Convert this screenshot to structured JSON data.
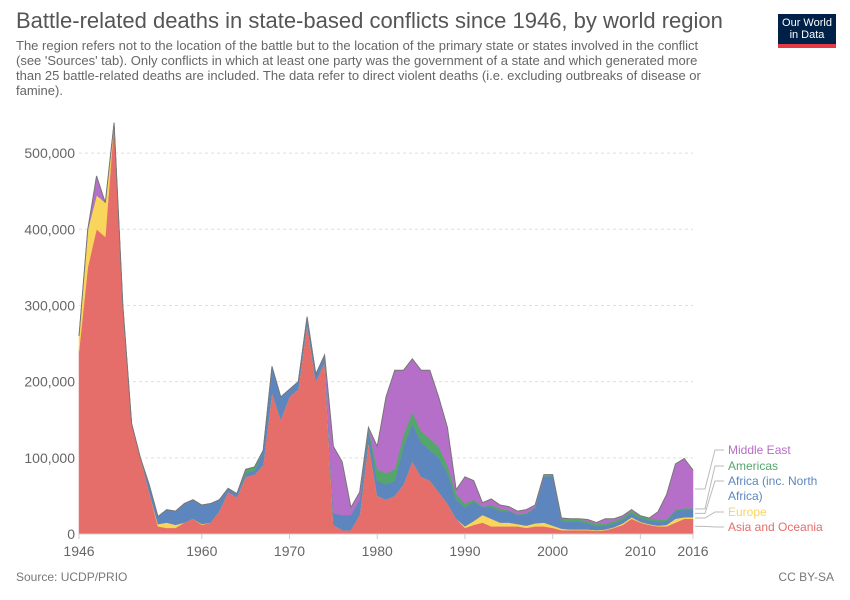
{
  "header": {
    "title": "Battle-related deaths in state-based conflicts since 1946, by world region",
    "subtitle": "The region refers not to the location of the battle but to the location of the primary state or states involved in the conflict (see 'Sources' tab). Only conflicts in which at least one party was the government of a state and which generated more than 25 battle-related deaths are included. The data refer to direct violent deaths (i.e. excluding outbreaks of disease or famine).",
    "logo_line1": "Our World",
    "logo_line2": "in Data"
  },
  "footer": {
    "source": "Source: UCDP/PRIO",
    "license": "CC BY-SA"
  },
  "colors": {
    "Asia and Oceania": "#e56e6b",
    "Europe": "#f9d55b",
    "Africa (inc. North Africa)": "#5d86bf",
    "Americas": "#55a66c",
    "Middle East": "#b66fc8",
    "grid": "#dddddd",
    "axis_text": "#666666",
    "legend_line": "#bbbbbb"
  },
  "chart_data": {
    "type": "area",
    "stacked": true,
    "title": "Battle-related deaths in state-based conflicts since 1946, by world region",
    "ylim": [
      0,
      550000
    ],
    "yticks": [
      0,
      100000,
      200000,
      300000,
      400000,
      500000
    ],
    "ytick_labels": [
      "0",
      "100,000",
      "200,000",
      "300,000",
      "400,000",
      "500,000"
    ],
    "xlim": [
      1946,
      2016
    ],
    "xticks": [
      1946,
      1960,
      1970,
      1980,
      1990,
      2000,
      2010,
      2016
    ],
    "xtick_labels": [
      "1946",
      "1960",
      "1970",
      "1980",
      "1990",
      "2000",
      "2010",
      "2016"
    ],
    "grid": true,
    "legend_position": "right",
    "x": [
      1946,
      1947,
      1948,
      1949,
      1950,
      1951,
      1952,
      1953,
      1954,
      1955,
      1956,
      1957,
      1958,
      1959,
      1960,
      1961,
      1962,
      1963,
      1964,
      1965,
      1966,
      1967,
      1968,
      1969,
      1970,
      1971,
      1972,
      1973,
      1974,
      1975,
      1976,
      1977,
      1978,
      1979,
      1980,
      1981,
      1982,
      1983,
      1984,
      1985,
      1986,
      1987,
      1988,
      1989,
      1990,
      1991,
      1992,
      1993,
      1994,
      1995,
      1996,
      1997,
      1998,
      1999,
      2000,
      2001,
      2002,
      2003,
      2004,
      2005,
      2006,
      2007,
      2008,
      2009,
      2010,
      2011,
      2012,
      2013,
      2014,
      2015,
      2016
    ],
    "series": [
      {
        "name": "Asia and Oceania",
        "values": [
          240000,
          350000,
          400000,
          390000,
          540000,
          300000,
          145000,
          100000,
          55000,
          10000,
          8000,
          8000,
          15000,
          20000,
          12000,
          15000,
          30000,
          55000,
          48000,
          75000,
          78000,
          90000,
          185000,
          150000,
          180000,
          190000,
          275000,
          200000,
          225000,
          12000,
          5000,
          5000,
          25000,
          120000,
          50000,
          45000,
          50000,
          65000,
          95000,
          75000,
          70000,
          55000,
          40000,
          20000,
          8000,
          12000,
          15000,
          10000,
          10000,
          10000,
          10000,
          8000,
          10000,
          10000,
          8000,
          5000,
          5000,
          5000,
          5000,
          4000,
          5000,
          8000,
          12000,
          20000,
          15000,
          12000,
          10000,
          10000,
          15000,
          20000,
          20000
        ]
      },
      {
        "name": "Europe",
        "values": [
          20000,
          50000,
          45000,
          45000,
          0,
          0,
          0,
          0,
          0,
          3000,
          7000,
          4000,
          0,
          0,
          1000,
          0,
          0,
          0,
          0,
          0,
          0,
          0,
          0,
          0,
          0,
          0,
          0,
          0,
          0,
          0,
          0,
          0,
          0,
          0,
          0,
          0,
          0,
          0,
          0,
          0,
          0,
          0,
          0,
          0,
          2000,
          5000,
          10000,
          10000,
          5000,
          5000,
          3000,
          3000,
          4000,
          5000,
          3000,
          2000,
          1000,
          1000,
          1000,
          1000,
          1000,
          1000,
          2000,
          2000,
          1000,
          1000,
          1000,
          2000,
          5000,
          2000,
          2000
        ]
      },
      {
        "name": "Africa (inc. North Africa)",
        "values": [
          0,
          0,
          0,
          0,
          0,
          0,
          0,
          0,
          10000,
          10000,
          17000,
          18000,
          25000,
          25000,
          25000,
          25000,
          15000,
          5000,
          5000,
          5000,
          5000,
          20000,
          35000,
          30000,
          10000,
          10000,
          10000,
          10000,
          10000,
          15000,
          20000,
          20000,
          20000,
          15000,
          20000,
          20000,
          20000,
          50000,
          50000,
          45000,
          40000,
          45000,
          40000,
          25000,
          25000,
          25000,
          10000,
          15000,
          15000,
          15000,
          12000,
          15000,
          20000,
          60000,
          65000,
          10000,
          10000,
          10000,
          8000,
          5000,
          5000,
          5000,
          5000,
          5000,
          5000,
          5000,
          5000,
          5000,
          10000,
          10000,
          10000
        ]
      },
      {
        "name": "Americas",
        "values": [
          0,
          0,
          0,
          0,
          0,
          0,
          0,
          0,
          0,
          0,
          0,
          0,
          0,
          0,
          0,
          0,
          0,
          0,
          0,
          5000,
          5000,
          0,
          0,
          0,
          0,
          0,
          0,
          0,
          0,
          0,
          0,
          0,
          0,
          5000,
          15000,
          15000,
          15000,
          15000,
          15000,
          15000,
          15000,
          15000,
          10000,
          8000,
          5000,
          3000,
          1000,
          3000,
          3000,
          1000,
          1000,
          1000,
          1000,
          1000,
          1000,
          3000,
          3000,
          3000,
          3000,
          3000,
          3000,
          3000,
          3000,
          3000,
          3000,
          3000,
          3000,
          2000,
          2000,
          2000,
          2000
        ]
      },
      {
        "name": "Middle East",
        "values": [
          0,
          0,
          25000,
          0,
          0,
          0,
          0,
          0,
          0,
          0,
          0,
          0,
          0,
          0,
          0,
          0,
          0,
          0,
          0,
          0,
          0,
          0,
          0,
          0,
          0,
          0,
          0,
          0,
          0,
          88000,
          70000,
          10000,
          10000,
          0,
          30000,
          100000,
          130000,
          85000,
          70000,
          80000,
          90000,
          65000,
          50000,
          5000,
          35000,
          25000,
          5000,
          8000,
          5000,
          5000,
          4000,
          5000,
          3000,
          2000,
          1000,
          1000,
          1000,
          1000,
          2000,
          2000,
          6000,
          3000,
          2000,
          2000,
          0,
          0,
          10000,
          33000,
          60000,
          65000,
          50000
        ]
      }
    ]
  },
  "legend": {
    "items": [
      {
        "label": "Middle East",
        "key": "Middle East"
      },
      {
        "label": "Americas",
        "key": "Americas"
      },
      {
        "label": "Africa (inc. North",
        "label2": "Africa)",
        "key": "Africa (inc. North Africa)"
      },
      {
        "label": "Europe",
        "key": "Europe"
      },
      {
        "label": "Asia and Oceania",
        "key": "Asia and Oceania"
      }
    ]
  }
}
